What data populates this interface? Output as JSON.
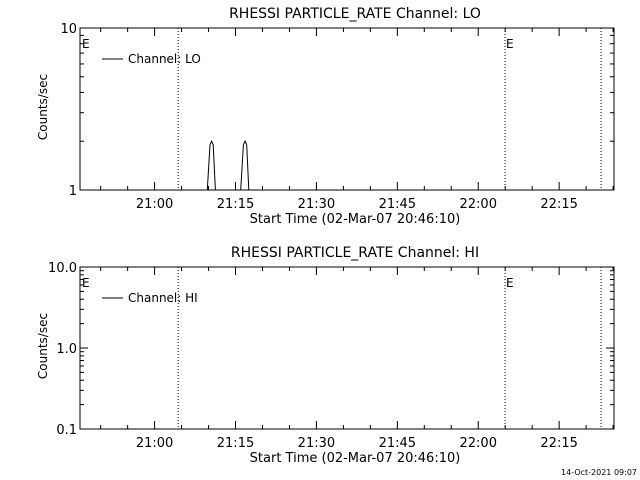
{
  "timestamp": "14-Oct-2021 09:07",
  "chart_data": [
    {
      "type": "line",
      "title": "RHESSI PARTICLE_RATE Channel: LO",
      "xlabel": "Start Time (02-Mar-07 20:46:10)",
      "ylabel": "Counts/sec",
      "yscale": "log",
      "ylim": [
        1,
        10
      ],
      "yticks": [
        {
          "value": 1,
          "label": "1"
        },
        {
          "value": 10,
          "label": "10"
        }
      ],
      "xlim_minutes": [
        0,
        99
      ],
      "xticks": [
        {
          "value": 13.83,
          "label": "21:00"
        },
        {
          "value": 28.83,
          "label": "21:15"
        },
        {
          "value": 43.83,
          "label": "21:30"
        },
        {
          "value": 58.83,
          "label": "21:45"
        },
        {
          "value": 73.83,
          "label": "22:00"
        },
        {
          "value": 88.83,
          "label": "22:15"
        }
      ],
      "event_lines_minutes": [
        18.2,
        78.8,
        96.6
      ],
      "event_markers": [
        {
          "at": 0,
          "label": "E"
        },
        {
          "at": 78.8,
          "label": "E"
        }
      ],
      "series": [
        {
          "name": "Channel: LO",
          "points": [
            [
              23.6,
              1
            ],
            [
              24.1,
              1.9
            ],
            [
              24.4,
              2
            ],
            [
              24.7,
              1.9
            ],
            [
              25.1,
              1
            ],
            [
              29.8,
              1
            ],
            [
              30.3,
              1.9
            ],
            [
              30.6,
              2
            ],
            [
              30.9,
              1.9
            ],
            [
              31.3,
              1
            ]
          ]
        }
      ]
    },
    {
      "type": "line",
      "title": "RHESSI PARTICLE_RATE Channel: HI",
      "xlabel": "Start Time (02-Mar-07 20:46:10)",
      "ylabel": "Counts/sec",
      "yscale": "log",
      "ylim": [
        0.1,
        10
      ],
      "yticks": [
        {
          "value": 0.1,
          "label": "0.1"
        },
        {
          "value": 1,
          "label": "1.0"
        },
        {
          "value": 10,
          "label": "10.0"
        }
      ],
      "xlim_minutes": [
        0,
        99
      ],
      "xticks": [
        {
          "value": 13.83,
          "label": "21:00"
        },
        {
          "value": 28.83,
          "label": "21:15"
        },
        {
          "value": 43.83,
          "label": "21:30"
        },
        {
          "value": 58.83,
          "label": "21:45"
        },
        {
          "value": 73.83,
          "label": "22:00"
        },
        {
          "value": 88.83,
          "label": "22:15"
        }
      ],
      "event_lines_minutes": [
        18.2,
        78.8,
        96.6
      ],
      "event_markers": [
        {
          "at": 0,
          "label": "E"
        },
        {
          "at": 78.8,
          "label": "E"
        }
      ],
      "series": [
        {
          "name": "Channel: HI",
          "points": []
        }
      ]
    }
  ]
}
